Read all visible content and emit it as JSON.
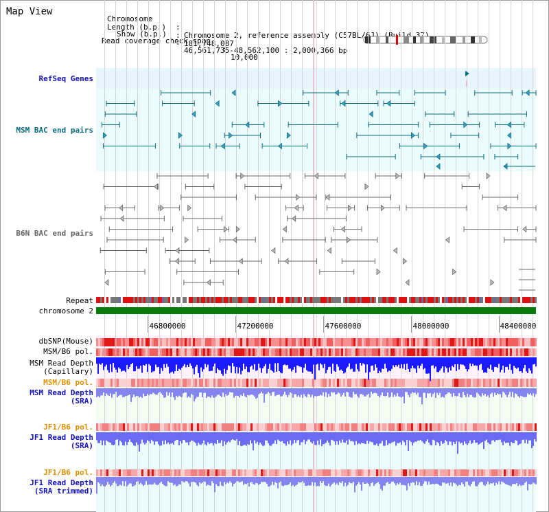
{
  "page_title": "Map View",
  "info": {
    "line1_label": "Chromosome",
    "line1_sep": ":",
    "line1_value": "Chromosome 2, reference assembly (C57BL/6J) (Build 37)",
    "line2_label": "Length (b.p.)",
    "line2_sep": ":",
    "line2_value": "181,748,087",
    "line3_label": "Show (b.p.)",
    "line3_sep": ":",
    "line3_value": "46,561,735-48,562,100 : 2,000,366 bp",
    "line4_label": "Read coverage check span",
    "line4_sep": ":",
    "line4_value": "10,000"
  },
  "tracks": {
    "refseq": "RefSeq Genes",
    "msm_bac": "MSM BAC end pairs",
    "b6n_bac": "B6N BAC end pairs",
    "repeat": "Repeat",
    "chromosome": "chromosome 2",
    "dbsnp": "dbSNP(Mouse)",
    "msm_pol1": "MSM/B6 pol.",
    "msm_rd_cap_1": "MSM Read Depth",
    "msm_rd_cap_2": "(Capillary)",
    "msm_pol2": "MSM/B6 pol.",
    "msm_rd_sra_1": "MSM Read Depth",
    "msm_rd_sra_2": "(SRA)",
    "jf1_pol1": "JF1/B6 pol.",
    "jf1_rd_1": "JF1 Read Depth",
    "jf1_rd_2": "(SRA)",
    "jf1_pol2": "JF1/B6 pol.",
    "jf1_rd_trim_1": "JF1 Read Depth",
    "jf1_rd_trim_2": "(SRA trimmed)"
  },
  "ruler": {
    "ticks": [
      "46800000",
      "47200000",
      "47600000",
      "48000000",
      "48400000"
    ]
  },
  "colors": {
    "refseq_label": "#1515b0",
    "msm_bac_label": "#0a6a80",
    "b6n_bac_label": "#666666",
    "pol_label": "#e09000",
    "depth_label": "#1010c0",
    "chromosome_bar": "#0a7a0a",
    "repeat_red": "#e01010",
    "depth_blue": "#1a1aff",
    "depth_light_blue": "#7777ee"
  }
}
